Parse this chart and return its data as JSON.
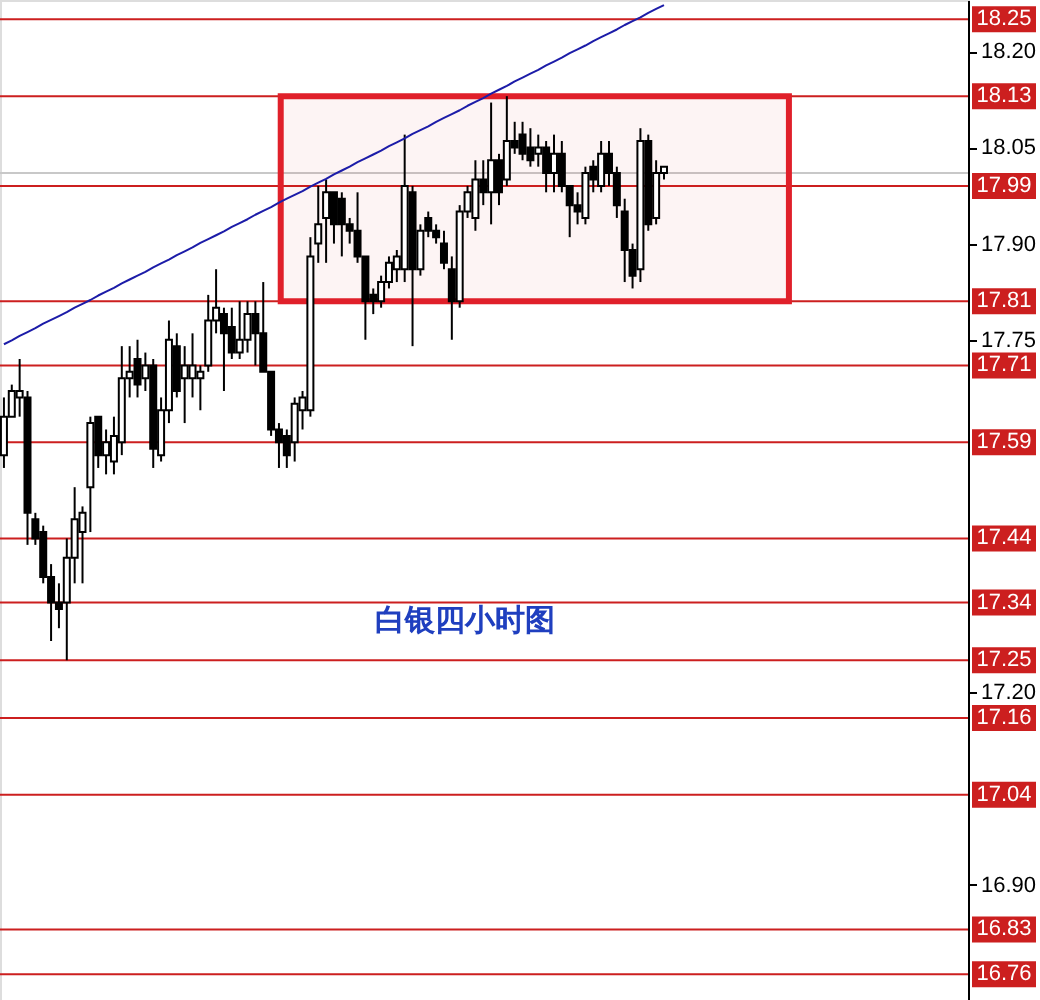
{
  "chart_data": {
    "type": "candlestick",
    "categories": [
      null,
      null,
      null,
      null,
      null,
      null,
      null,
      null,
      null,
      null,
      null,
      null,
      null,
      null,
      null,
      null,
      null,
      null,
      null,
      null,
      null,
      null,
      null,
      null,
      null,
      null,
      null,
      null,
      null,
      null,
      null,
      null,
      null,
      null,
      null,
      null,
      null,
      null,
      null,
      null,
      null,
      null,
      null,
      null,
      null,
      null,
      null,
      null,
      null,
      null,
      null,
      null,
      null,
      null,
      null,
      null,
      null,
      null,
      null,
      null,
      null,
      null,
      null,
      null,
      null,
      null,
      null,
      null,
      null,
      null,
      null,
      null,
      null,
      null,
      null,
      null,
      null,
      null,
      null,
      null,
      null,
      null,
      null,
      null,
      null
    ],
    "ohlc": [
      [
        17.57,
        17.66,
        17.55,
        17.63
      ],
      [
        17.63,
        17.68,
        17.63,
        17.67
      ],
      [
        17.66,
        17.72,
        17.63,
        17.67
      ],
      [
        17.66,
        17.67,
        17.43,
        17.48
      ],
      [
        17.47,
        17.48,
        17.43,
        17.44
      ],
      [
        17.45,
        17.46,
        17.37,
        17.38
      ],
      [
        17.38,
        17.4,
        17.28,
        17.34
      ],
      [
        17.34,
        17.37,
        17.3,
        17.33
      ],
      [
        17.34,
        17.44,
        17.25,
        17.41
      ],
      [
        17.41,
        17.52,
        17.37,
        17.47
      ],
      [
        17.45,
        17.49,
        17.37,
        17.48
      ],
      [
        17.52,
        17.63,
        17.45,
        17.62
      ],
      [
        17.63,
        17.63,
        17.55,
        17.57
      ],
      [
        17.57,
        17.61,
        17.54,
        17.59
      ],
      [
        17.56,
        17.63,
        17.54,
        17.6
      ],
      [
        17.59,
        17.74,
        17.57,
        17.69
      ],
      [
        17.69,
        17.74,
        17.66,
        17.7
      ],
      [
        17.72,
        17.75,
        17.66,
        17.68
      ],
      [
        17.69,
        17.73,
        17.67,
        17.71
      ],
      [
        17.71,
        17.72,
        17.55,
        17.58
      ],
      [
        17.57,
        17.66,
        17.56,
        17.64
      ],
      [
        17.64,
        17.78,
        17.62,
        17.75
      ],
      [
        17.74,
        17.76,
        17.66,
        17.67
      ],
      [
        17.69,
        17.74,
        17.62,
        17.71
      ],
      [
        17.69,
        17.76,
        17.66,
        17.71
      ],
      [
        17.69,
        17.71,
        17.64,
        17.7
      ],
      [
        17.71,
        17.82,
        17.7,
        17.78
      ],
      [
        17.78,
        17.86,
        17.76,
        17.8
      ],
      [
        17.79,
        17.8,
        17.67,
        17.76
      ],
      [
        17.77,
        17.8,
        17.72,
        17.73
      ],
      [
        17.73,
        17.81,
        17.72,
        17.75
      ],
      [
        17.75,
        17.81,
        17.73,
        17.79
      ],
      [
        17.79,
        17.81,
        17.71,
        17.76
      ],
      [
        17.76,
        17.84,
        17.7,
        17.7
      ],
      [
        17.7,
        17.7,
        17.6,
        17.61
      ],
      [
        17.61,
        17.62,
        17.55,
        17.59
      ],
      [
        17.6,
        17.61,
        17.55,
        17.57
      ],
      [
        17.59,
        17.66,
        17.56,
        17.65
      ],
      [
        17.64,
        17.67,
        17.61,
        17.66
      ],
      [
        17.64,
        17.91,
        17.63,
        17.88
      ],
      [
        17.9,
        17.99,
        17.87,
        17.93
      ],
      [
        17.94,
        18.0,
        17.87,
        17.98
      ],
      [
        17.98,
        17.98,
        17.9,
        17.93
      ],
      [
        17.97,
        17.98,
        17.88,
        17.93
      ],
      [
        17.93,
        17.94,
        17.9,
        17.92
      ],
      [
        17.92,
        17.98,
        17.87,
        17.88
      ],
      [
        17.88,
        17.88,
        17.75,
        17.81
      ],
      [
        17.82,
        17.83,
        17.79,
        17.81
      ],
      [
        17.81,
        17.85,
        17.8,
        17.84
      ],
      [
        17.84,
        17.88,
        17.83,
        17.87
      ],
      [
        17.86,
        17.89,
        17.84,
        17.88
      ],
      [
        17.86,
        18.07,
        17.84,
        17.99
      ],
      [
        17.98,
        17.99,
        17.74,
        17.86
      ],
      [
        17.86,
        17.93,
        17.85,
        17.92
      ],
      [
        17.94,
        17.95,
        17.91,
        17.92
      ],
      [
        17.92,
        17.93,
        17.9,
        17.91
      ],
      [
        17.9,
        17.92,
        17.86,
        17.87
      ],
      [
        17.86,
        17.88,
        17.75,
        17.81
      ],
      [
        17.81,
        17.96,
        17.8,
        17.95
      ],
      [
        17.95,
        17.99,
        17.94,
        17.98
      ],
      [
        17.94,
        18.03,
        17.92,
        18.0
      ],
      [
        18.0,
        18.03,
        17.96,
        17.98
      ],
      [
        17.98,
        18.12,
        17.93,
        18.03
      ],
      [
        18.03,
        18.04,
        17.96,
        17.98
      ],
      [
        18.0,
        18.13,
        17.99,
        18.06
      ],
      [
        18.06,
        18.09,
        18.04,
        18.05
      ],
      [
        18.07,
        18.09,
        18.03,
        18.04
      ],
      [
        18.05,
        18.08,
        18.02,
        18.03
      ],
      [
        18.04,
        18.07,
        18.02,
        18.05
      ],
      [
        18.05,
        18.06,
        17.98,
        18.01
      ],
      [
        18.01,
        18.07,
        17.98,
        18.04
      ],
      [
        18.04,
        18.06,
        17.98,
        17.99
      ],
      [
        17.99,
        17.99,
        17.91,
        17.96
      ],
      [
        17.96,
        17.98,
        17.93,
        17.95
      ],
      [
        17.94,
        18.02,
        17.93,
        18.01
      ],
      [
        18.02,
        18.03,
        17.98,
        18.0
      ],
      [
        17.99,
        18.06,
        17.98,
        18.04
      ],
      [
        18.04,
        18.06,
        17.99,
        18.01
      ],
      [
        18.01,
        18.02,
        17.94,
        17.96
      ],
      [
        17.95,
        17.97,
        17.84,
        17.89
      ],
      [
        17.89,
        17.9,
        17.83,
        17.85
      ],
      [
        17.86,
        18.08,
        17.84,
        18.06
      ],
      [
        18.06,
        18.07,
        17.92,
        17.93
      ],
      [
        17.94,
        18.03,
        17.93,
        18.01
      ],
      [
        18.01,
        18.02,
        18.0,
        18.02
      ]
    ],
    "series": [
      {
        "type": "line",
        "color": "#1c1ca8",
        "values": [
          17.743,
          17.749,
          17.756,
          17.762,
          17.768,
          17.775,
          17.781,
          17.787,
          17.793,
          17.8,
          17.806,
          17.812,
          17.819,
          17.825,
          17.831,
          17.838,
          17.844,
          17.85,
          17.856,
          17.863,
          17.869,
          17.875,
          17.882,
          17.888,
          17.894,
          17.901,
          17.907,
          17.913,
          17.919,
          17.926,
          17.932,
          17.938,
          17.945,
          17.951,
          17.957,
          17.964,
          17.97,
          17.976,
          17.982,
          17.989,
          17.995,
          18.001,
          18.008,
          18.014,
          18.02,
          18.027,
          18.033,
          18.039,
          18.045,
          18.052,
          18.058,
          18.064,
          18.071,
          18.077,
          18.083,
          18.09,
          18.096,
          18.102,
          18.108,
          18.115,
          18.121,
          18.127,
          18.134,
          18.14,
          18.146,
          18.153,
          18.159,
          18.165,
          18.171,
          18.178,
          18.184,
          18.19,
          18.197,
          18.203,
          18.209,
          18.216,
          18.222,
          18.228,
          18.234,
          18.241,
          18.247,
          18.253,
          18.26,
          18.266,
          18.272
        ]
      }
    ],
    "ylim": [
      16.72,
      18.28
    ],
    "yticks": [
      {
        "value": 18.2,
        "label": "18.20"
      },
      18.05,
      {
        "value": 17.9,
        "label": "17.90"
      },
      17.75,
      {
        "value": 17.2,
        "label": "17.20"
      },
      {
        "value": 16.9,
        "label": "16.90"
      }
    ],
    "ref_lines": [
      {
        "axis": "y",
        "value": 18.25,
        "label": "18.25",
        "color": "#cc1f1f"
      },
      {
        "axis": "y",
        "value": 18.13,
        "label": "18.13",
        "color": "#cc1f1f"
      },
      {
        "axis": "y",
        "value": 18.01,
        "label": null,
        "color": "#c8c8c8"
      },
      {
        "axis": "y",
        "value": 17.99,
        "label": "17.99",
        "color": "#cc1f1f"
      },
      {
        "axis": "y",
        "value": 17.81,
        "label": "17.81",
        "color": "#cc1f1f"
      },
      {
        "axis": "y",
        "value": 17.71,
        "label": "17.71",
        "color": "#cc1f1f"
      },
      {
        "axis": "y",
        "value": 17.59,
        "label": "17.59",
        "color": "#cc1f1f"
      },
      {
        "axis": "y",
        "value": 17.44,
        "label": "17.44",
        "color": "#cc1f1f"
      },
      {
        "axis": "y",
        "value": 17.34,
        "label": "17.34",
        "color": "#cc1f1f"
      },
      {
        "axis": "y",
        "value": 17.25,
        "label": "17.25",
        "color": "#cc1f1f"
      },
      {
        "axis": "y",
        "value": 17.16,
        "label": "17.16",
        "color": "#cc1f1f"
      },
      {
        "axis": "y",
        "value": 17.04,
        "label": "17.04",
        "color": "#cc1f1f"
      },
      {
        "axis": "y",
        "value": 16.83,
        "label": "16.83",
        "color": "#cc1f1f"
      },
      {
        "axis": "y",
        "value": 16.76,
        "label": "16.76",
        "color": "#cc1f1f"
      }
    ],
    "bands": [
      {
        "axis": "y",
        "from": 17.81,
        "to": 18.13,
        "color": "#e0202a"
      }
    ],
    "annotations": [
      "白银四小时图"
    ],
    "tick_labels": "y",
    "grid": false
  }
}
